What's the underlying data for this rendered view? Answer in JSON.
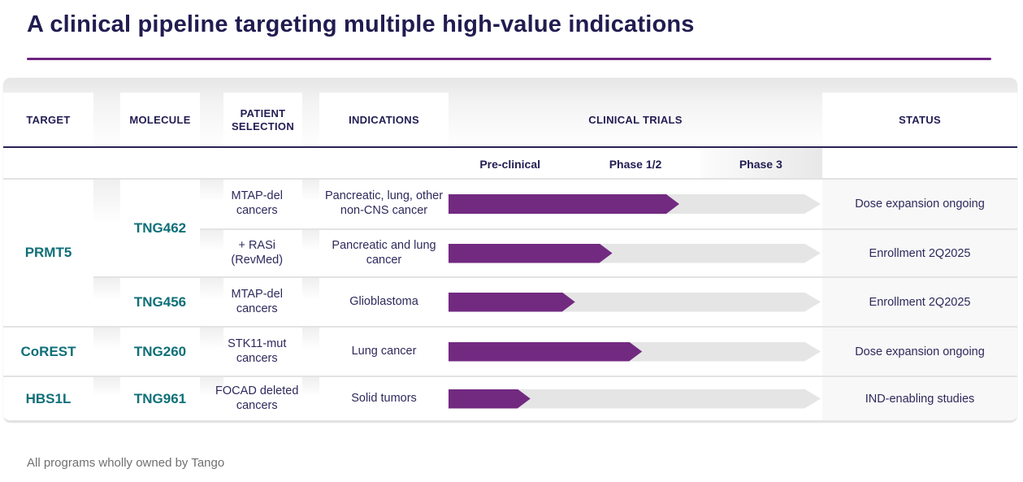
{
  "page": {
    "title": "A clinical pipeline targeting multiple high-value indications",
    "footnote": "All programs wholly owned by Tango"
  },
  "colors": {
    "navy_text": "#221d53",
    "teal_text": "#0f6f78",
    "purple_accent": "#722a81",
    "track_gray": "#e5e5e5"
  },
  "table": {
    "column_headers": {
      "target": "TARGET",
      "molecule": "MOLECULE",
      "patient_selection": "PATIENT SELECTION",
      "indications": "INDICATIONS",
      "clinical_trials": "CLINICAL TRIALS",
      "status": "STATUS"
    },
    "phase_headers": [
      "Pre-clinical",
      "Phase 1/2",
      "Phase 3"
    ],
    "targets": [
      {
        "name": "PRMT5",
        "row_start": 1,
        "row_span": 3
      },
      {
        "name": "CoREST",
        "row_start": 4,
        "row_span": 1
      },
      {
        "name": "HBS1L",
        "row_start": 5,
        "row_span": 1
      }
    ],
    "molecules": [
      {
        "name": "TNG462",
        "row_start": 1,
        "row_span": 2
      },
      {
        "name": "TNG456",
        "row_start": 3,
        "row_span": 1
      },
      {
        "name": "TNG260",
        "row_start": 4,
        "row_span": 1
      },
      {
        "name": "TNG961",
        "row_start": 5,
        "row_span": 1
      }
    ],
    "rows": [
      {
        "patient_selection": "MTAP-del cancers",
        "indication": "Pancreatic, lung, other non-CNS cancer",
        "progress_pct": 62,
        "phase_reached": "Phase 1/2",
        "status": "Dose expansion ongoing"
      },
      {
        "patient_selection": "+ RASi (RevMed)",
        "indication": "Pancreatic and lung cancer",
        "progress_pct": 44,
        "phase_reached": "Phase 1/2",
        "status": "Enrollment 2Q2025"
      },
      {
        "patient_selection": "MTAP-del cancers",
        "indication": "Glioblastoma",
        "progress_pct": 34,
        "phase_reached": "Phase 1/2",
        "status": "Enrollment 2Q2025"
      },
      {
        "patient_selection": "STK11-mut cancers",
        "indication": "Lung cancer",
        "progress_pct": 52,
        "phase_reached": "Phase 1/2",
        "status": "Dose expansion ongoing"
      },
      {
        "patient_selection": "FOCAD deleted cancers",
        "indication": "Solid tumors",
        "progress_pct": 22,
        "phase_reached": "Pre-clinical",
        "status": "IND-enabling studies"
      }
    ]
  }
}
